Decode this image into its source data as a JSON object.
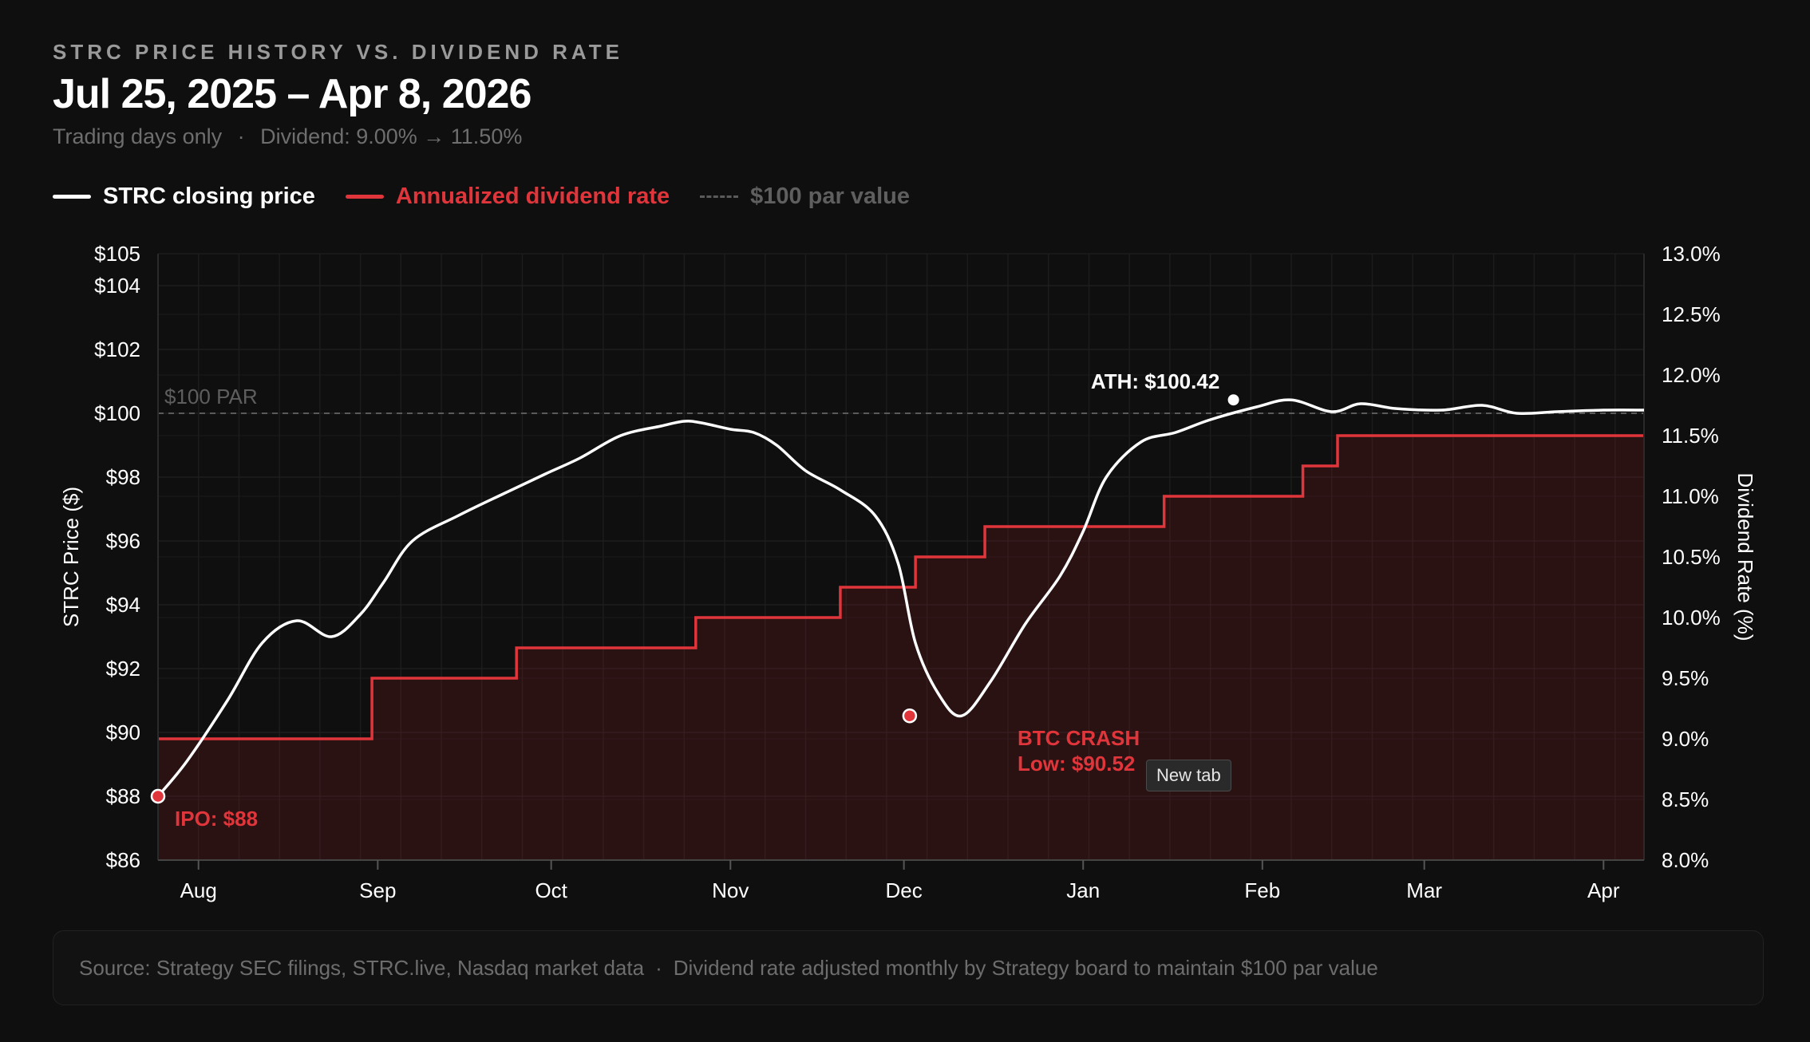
{
  "header": {
    "kicker": "STRC PRICE HISTORY VS. DIVIDEND RATE",
    "title": "Jul 25, 2025 – Apr 8, 2026",
    "subtitle_part1": "Trading days only",
    "subtitle_sep": "·",
    "subtitle_part2": "Dividend: 9.00% → 11.50%"
  },
  "legend": {
    "price": "STRC closing price",
    "dividend": "Annualized dividend rate",
    "par": "$100 par value"
  },
  "colors": {
    "price": "#ffffff",
    "dividend": "#e0353b",
    "par": "#5a5a5a",
    "background": "#0f0f0f"
  },
  "footer": {
    "source": "Source: Strategy SEC filings, STRC.live, Nasdaq market data",
    "sep": "·",
    "note": "Dividend rate adjusted monthly by Strategy board to maintain $100 par value"
  },
  "tooltip": {
    "text": "New tab"
  },
  "chart_data": {
    "type": "line",
    "title": "STRC PRICE HISTORY VS. DIVIDEND RATE",
    "x_range_days": [
      0,
      257
    ],
    "x_ticks": [
      {
        "label": "Aug",
        "day": 7
      },
      {
        "label": "Sep",
        "day": 38
      },
      {
        "label": "Oct",
        "day": 68
      },
      {
        "label": "Nov",
        "day": 99
      },
      {
        "label": "Dec",
        "day": 129
      },
      {
        "label": "Jan",
        "day": 160
      },
      {
        "label": "Feb",
        "day": 191
      },
      {
        "label": "Mar",
        "day": 219
      },
      {
        "label": "Apr",
        "day": 250
      }
    ],
    "y_left": {
      "label": "STRC Price ($)",
      "range": [
        86,
        105
      ],
      "ticks": [
        86,
        88,
        90,
        92,
        94,
        96,
        98,
        100,
        102,
        104,
        105
      ],
      "tick_labels": [
        "$86",
        "$88",
        "$90",
        "$92",
        "$94",
        "$96",
        "$98",
        "$100",
        "$102",
        "$104",
        "$105"
      ]
    },
    "y_right": {
      "label": "Dividend Rate (%)",
      "range": [
        8.0,
        13.0
      ],
      "ticks": [
        8.0,
        8.5,
        9.0,
        9.5,
        10.0,
        10.5,
        11.0,
        11.5,
        12.0,
        12.5,
        13.0
      ],
      "tick_labels": [
        "8.0%",
        "8.5%",
        "9.0%",
        "9.5%",
        "10.0%",
        "10.5%",
        "11.0%",
        "11.5%",
        "12.0%",
        "12.5%",
        "13.0%"
      ]
    },
    "series": [
      {
        "name": "STRC closing price",
        "axis": "left",
        "points": [
          [
            0,
            88.0
          ],
          [
            5,
            89.1
          ],
          [
            12,
            91.0
          ],
          [
            18,
            92.8
          ],
          [
            24,
            93.5
          ],
          [
            30,
            93.0
          ],
          [
            35,
            93.7
          ],
          [
            39,
            94.7
          ],
          [
            44,
            96.0
          ],
          [
            52,
            96.8
          ],
          [
            60,
            97.5
          ],
          [
            67,
            98.1
          ],
          [
            73,
            98.6
          ],
          [
            80,
            99.3
          ],
          [
            87,
            99.6
          ],
          [
            91,
            99.75
          ],
          [
            94,
            99.7
          ],
          [
            99,
            99.5
          ],
          [
            103,
            99.4
          ],
          [
            107,
            99.0
          ],
          [
            112,
            98.2
          ],
          [
            118,
            97.6
          ],
          [
            124,
            96.8
          ],
          [
            128,
            95.3
          ],
          [
            131,
            92.8
          ],
          [
            135,
            91.2
          ],
          [
            139,
            90.52
          ],
          [
            144,
            91.6
          ],
          [
            150,
            93.4
          ],
          [
            156,
            94.9
          ],
          [
            160,
            96.3
          ],
          [
            164,
            98.0
          ],
          [
            170,
            99.1
          ],
          [
            176,
            99.4
          ],
          [
            182,
            99.8
          ],
          [
            190,
            100.2
          ],
          [
            196,
            100.42
          ],
          [
            203,
            100.05
          ],
          [
            208,
            100.3
          ],
          [
            214,
            100.15
          ],
          [
            222,
            100.1
          ],
          [
            229,
            100.25
          ],
          [
            235,
            100.0
          ],
          [
            242,
            100.05
          ],
          [
            250,
            100.1
          ],
          [
            257,
            100.1
          ]
        ]
      },
      {
        "name": "Annualized dividend rate",
        "axis": "right",
        "steps": [
          [
            0,
            9.0
          ],
          [
            37,
            9.5
          ],
          [
            62,
            9.75
          ],
          [
            93,
            10.0
          ],
          [
            118,
            10.25
          ],
          [
            131,
            10.5
          ],
          [
            143,
            10.75
          ],
          [
            174,
            11.0
          ],
          [
            198,
            11.25
          ],
          [
            204,
            11.5
          ],
          [
            257,
            11.5
          ]
        ]
      }
    ],
    "reference_line": {
      "label": "$100 PAR",
      "value": 100
    },
    "annotations": [
      {
        "label": "IPO: $88",
        "day": 0,
        "value": 88.0,
        "color": "red"
      },
      {
        "label": "BTC CRASH",
        "sublabel": "Low: $90.52",
        "day": 130,
        "value": 90.52,
        "color": "red"
      },
      {
        "label": "ATH: $100.42",
        "day": 186,
        "value": 100.42,
        "color": "white"
      }
    ],
    "grid": true
  }
}
